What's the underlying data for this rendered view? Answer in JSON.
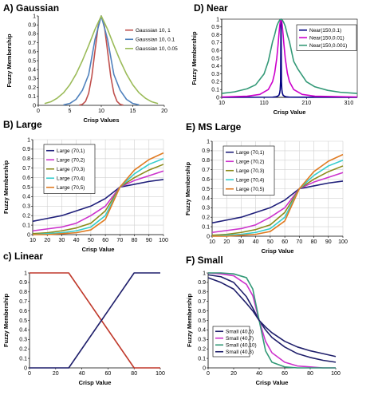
{
  "chart_data": [
    {
      "id": "A",
      "type": "line",
      "title": "A) Gaussian",
      "xlabel": "Crisp Values",
      "ylabel": "Fuzzy Membership",
      "xlim": [
        0,
        20
      ],
      "ylim": [
        0,
        1
      ],
      "xticks": [
        0,
        5,
        10,
        15,
        20
      ],
      "yticks": [
        0,
        0.1,
        0.2,
        0.3,
        0.4,
        0.5,
        0.6,
        0.7,
        0.8,
        0.9,
        1
      ],
      "legend_position": "top-right",
      "series": [
        {
          "name": "Gaussian 10, 1",
          "color": "#c0504d",
          "x": [
            6.5,
            7,
            7.5,
            8,
            8.5,
            9,
            9.5,
            10,
            10.5,
            11,
            11.5,
            12,
            12.5,
            13,
            13.5
          ],
          "y": [
            0.002,
            0.011,
            0.044,
            0.135,
            0.325,
            0.607,
            0.882,
            1,
            0.882,
            0.607,
            0.325,
            0.135,
            0.044,
            0.011,
            0.002
          ]
        },
        {
          "name": "Gaussian 10, 0.1",
          "color": "#4f81bd",
          "x": [
            4,
            5,
            6,
            7,
            8,
            9,
            10,
            11,
            12,
            13,
            14,
            15,
            16
          ],
          "y": [
            0.005,
            0.021,
            0.067,
            0.168,
            0.345,
            0.737,
            1,
            0.737,
            0.345,
            0.168,
            0.067,
            0.021,
            0.005
          ]
        },
        {
          "name": "Gaussian 10, 0.05",
          "color": "#9bbb59",
          "x": [
            1,
            2,
            3,
            4,
            5,
            6,
            7,
            8,
            9,
            10,
            11,
            12,
            13,
            14,
            15,
            16,
            17,
            18,
            19
          ],
          "y": [
            0.02,
            0.04,
            0.08,
            0.14,
            0.23,
            0.35,
            0.5,
            0.67,
            0.85,
            1,
            0.85,
            0.67,
            0.5,
            0.35,
            0.23,
            0.14,
            0.08,
            0.04,
            0.02
          ]
        }
      ]
    },
    {
      "id": "D",
      "type": "line",
      "title": "D) Near",
      "xlabel": "Crisp Value",
      "ylabel": "Fuzzy Membership",
      "xlim": [
        10,
        330
      ],
      "ylim": [
        0,
        1
      ],
      "xticks": [
        10,
        110,
        210,
        310
      ],
      "yticks": [
        0,
        0.1,
        0.2,
        0.3,
        0.4,
        0.5,
        0.6,
        0.7,
        0.8,
        0.9,
        1
      ],
      "legend_position": "top-right",
      "series": [
        {
          "name": "Near(150,0.1)",
          "color": "#000080",
          "x": [
            10,
            130,
            138,
            142,
            145,
            147,
            148,
            149,
            150,
            151,
            152,
            153,
            155,
            158,
            162,
            170,
            330
          ],
          "y": [
            0.0005,
            0.0025,
            0.0068,
            0.015,
            0.027,
            0.059,
            0.1,
            0.2,
            1,
            0.2,
            0.1,
            0.059,
            0.027,
            0.015,
            0.0068,
            0.0025,
            0.0005
          ]
        },
        {
          "name": "Near(150,0.01)",
          "color": "#cc00cc",
          "x": [
            10,
            70,
            100,
            120,
            130,
            135,
            140,
            143,
            145,
            147,
            148,
            149,
            150,
            151,
            152,
            153,
            155,
            157,
            160,
            165,
            170,
            180,
            200,
            230,
            330
          ],
          "y": [
            0.005,
            0.015,
            0.038,
            0.1,
            0.2,
            0.31,
            0.5,
            0.67,
            0.8,
            0.92,
            0.96,
            0.99,
            1,
            0.99,
            0.96,
            0.92,
            0.8,
            0.67,
            0.5,
            0.31,
            0.2,
            0.1,
            0.038,
            0.015,
            0.005
          ]
        },
        {
          "name": "Near(150,0.001)",
          "color": "#339977",
          "x": [
            10,
            40,
            70,
            90,
            110,
            120,
            130,
            135,
            140,
            143,
            145,
            147,
            150,
            153,
            155,
            157,
            160,
            165,
            170,
            180,
            190,
            210,
            230,
            260,
            290,
            330
          ],
          "y": [
            0.05,
            0.07,
            0.11,
            0.16,
            0.3,
            0.46,
            0.71,
            0.8,
            0.91,
            0.95,
            0.97,
            0.99,
            1,
            0.99,
            0.97,
            0.95,
            0.91,
            0.8,
            0.71,
            0.46,
            0.36,
            0.2,
            0.135,
            0.09,
            0.065,
            0.05
          ]
        }
      ]
    },
    {
      "id": "B",
      "type": "line",
      "title": "B) Large",
      "xlabel": "Crisp Value",
      "ylabel": "Fuzzy Membership",
      "xlim": [
        10,
        100
      ],
      "ylim": [
        0,
        1
      ],
      "xticks": [
        10,
        20,
        30,
        40,
        50,
        60,
        70,
        80,
        90,
        100
      ],
      "yticks": [
        0,
        0.1,
        0.2,
        0.3,
        0.4,
        0.5,
        0.6,
        0.7,
        0.8,
        0.9,
        1
      ],
      "legend_position": "top-left",
      "x": [
        10,
        20,
        30,
        40,
        50,
        60,
        70,
        80,
        90,
        100
      ],
      "series": [
        {
          "name": "Large (70,1)",
          "color": "#1f1f7a",
          "values": [
            0.14,
            0.17,
            0.2,
            0.25,
            0.3,
            0.38,
            0.5,
            0.53,
            0.56,
            0.58
          ]
        },
        {
          "name": "Large (70,2)",
          "color": "#cc33cc",
          "values": [
            0.04,
            0.06,
            0.08,
            0.12,
            0.2,
            0.3,
            0.5,
            0.57,
            0.62,
            0.67
          ]
        },
        {
          "name": "Large (70,3)",
          "color": "#8b8b1a",
          "values": [
            0.01,
            0.02,
            0.04,
            0.07,
            0.12,
            0.25,
            0.5,
            0.6,
            0.68,
            0.74
          ]
        },
        {
          "name": "Large (70,4)",
          "color": "#33cccc",
          "values": [
            0.0,
            0.01,
            0.02,
            0.04,
            0.08,
            0.2,
            0.5,
            0.64,
            0.74,
            0.8
          ]
        },
        {
          "name": "Large (70,5)",
          "color": "#e07b22",
          "values": [
            0.0,
            0.0,
            0.01,
            0.02,
            0.05,
            0.16,
            0.5,
            0.68,
            0.79,
            0.86
          ]
        }
      ]
    },
    {
      "id": "E",
      "type": "line",
      "title": "E) MS Large",
      "xlabel": "Crisp Value",
      "ylabel": "Fuzzy Membership",
      "xlim": [
        10,
        100
      ],
      "ylim": [
        0,
        1
      ],
      "xticks": [
        10,
        20,
        30,
        40,
        50,
        60,
        70,
        80,
        90,
        100
      ],
      "yticks": [
        0,
        0.1,
        0.2,
        0.3,
        0.4,
        0.5,
        0.6,
        0.7,
        0.8,
        0.9,
        1
      ],
      "legend_position": "top-left",
      "x": [
        10,
        20,
        30,
        40,
        50,
        60,
        70,
        80,
        90,
        100
      ],
      "series": [
        {
          "name": "Large (70,1)",
          "color": "#1f1f7a",
          "values": [
            0.14,
            0.17,
            0.2,
            0.25,
            0.3,
            0.38,
            0.5,
            0.53,
            0.56,
            0.58
          ]
        },
        {
          "name": "Large (70,2)",
          "color": "#cc33cc",
          "values": [
            0.04,
            0.06,
            0.08,
            0.12,
            0.2,
            0.3,
            0.5,
            0.57,
            0.62,
            0.67
          ]
        },
        {
          "name": "Large (70,3)",
          "color": "#8b8b1a",
          "values": [
            0.01,
            0.02,
            0.04,
            0.07,
            0.12,
            0.25,
            0.5,
            0.6,
            0.68,
            0.74
          ]
        },
        {
          "name": "Large (70,4)",
          "color": "#33cccc",
          "values": [
            0.0,
            0.01,
            0.02,
            0.04,
            0.08,
            0.2,
            0.5,
            0.64,
            0.74,
            0.8
          ]
        },
        {
          "name": "Large (70,5)",
          "color": "#e07b22",
          "values": [
            0.0,
            0.0,
            0.01,
            0.02,
            0.05,
            0.16,
            0.5,
            0.68,
            0.79,
            0.86
          ]
        }
      ]
    },
    {
      "id": "C",
      "type": "line",
      "title": "c) Linear",
      "xlabel": "Crisp Value",
      "ylabel": "Fuzzy Membership",
      "xlim": [
        0,
        100
      ],
      "ylim": [
        0,
        1
      ],
      "xticks": [
        0,
        20,
        40,
        60,
        80,
        100
      ],
      "yticks": [
        0,
        0.1,
        0.2,
        0.3,
        0.4,
        0.5,
        0.6,
        0.7,
        0.8,
        0.9,
        1
      ],
      "series": [
        {
          "color": "#c0392b",
          "x": [
            0,
            30,
            80,
            100
          ],
          "y": [
            1,
            1,
            0,
            0
          ]
        },
        {
          "color": "#1f1f6b",
          "x": [
            0,
            30,
            80,
            100
          ],
          "y": [
            0,
            0,
            1,
            1
          ]
        }
      ]
    },
    {
      "id": "F",
      "type": "line",
      "title": "F) Small",
      "xlabel": "Crisp Value",
      "ylabel": "Fuzzy Membership",
      "xlim": [
        0,
        100
      ],
      "ylim": [
        0,
        1
      ],
      "xticks": [
        0,
        20,
        40,
        60,
        80,
        100
      ],
      "yticks": [
        0,
        0.1,
        0.2,
        0.3,
        0.4,
        0.5,
        0.6,
        0.7,
        0.8,
        0.9,
        1
      ],
      "legend_position": "bottom-left",
      "x": [
        0,
        10,
        20,
        30,
        35,
        40,
        45,
        50,
        60,
        70,
        80,
        90,
        100
      ],
      "series": [
        {
          "name": "Small (40,5)",
          "color": "#1f1f6b",
          "values": [
            0.98,
            0.96,
            0.9,
            0.75,
            0.63,
            0.5,
            0.4,
            0.32,
            0.22,
            0.15,
            0.11,
            0.08,
            0.06
          ]
        },
        {
          "name": "Small (40,7)",
          "color": "#cc33cc",
          "values": [
            1,
            0.99,
            0.97,
            0.88,
            0.76,
            0.5,
            0.28,
            0.16,
            0.06,
            0.02,
            0.01,
            0,
            0
          ]
        },
        {
          "name": "Small (40,10)",
          "color": "#339977",
          "values": [
            1,
            1,
            0.99,
            0.95,
            0.83,
            0.5,
            0.18,
            0.06,
            0.01,
            0,
            0,
            0,
            0
          ]
        },
        {
          "name": "Small (40,3)",
          "color": "#1f1f6b",
          "values": [
            0.95,
            0.9,
            0.83,
            0.68,
            0.6,
            0.5,
            0.43,
            0.37,
            0.28,
            0.22,
            0.18,
            0.15,
            0.12
          ]
        }
      ]
    }
  ]
}
